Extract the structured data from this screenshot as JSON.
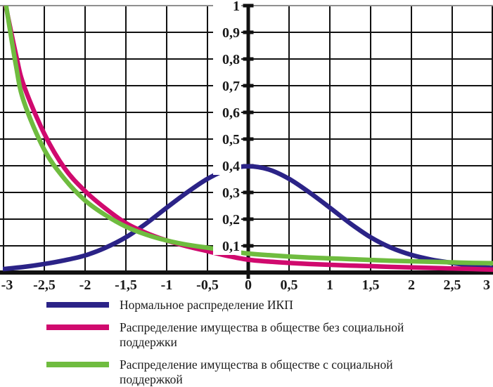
{
  "chart_data": {
    "type": "line",
    "title": "",
    "xlabel": "",
    "ylabel": "",
    "xlim": [
      -3,
      3
    ],
    "ylim": [
      0,
      1
    ],
    "grid": true,
    "legend_position": "bottom",
    "x_ticks": {
      "values": [
        -3,
        -2.5,
        -2,
        -1.5,
        -1,
        -0.5,
        0,
        0.5,
        1,
        1.5,
        2,
        2.5,
        3
      ],
      "labels": [
        "-3",
        "-2,5",
        "-2",
        "-1,5",
        "-1",
        "-0,5",
        "0",
        "0,5",
        "1",
        "1,5",
        "2",
        "2,5",
        "3"
      ]
    },
    "y_ticks": {
      "values": [
        0.1,
        0.2,
        0.3,
        0.4,
        0.5,
        0.6,
        0.7,
        0.8,
        0.9,
        1.0
      ],
      "labels": [
        "0,1",
        "0,2",
        "0,3",
        "0,4",
        "0,5",
        "0,6",
        "0,7",
        "0,8",
        "0,9",
        "1"
      ]
    },
    "series": [
      {
        "name": "Нормальное распределение ИКП",
        "color": "#2b2387",
        "points": [
          [
            -3,
            0.013
          ],
          [
            -2.75,
            0.021
          ],
          [
            -2.5,
            0.032
          ],
          [
            -2.25,
            0.046
          ],
          [
            -2,
            0.064
          ],
          [
            -1.75,
            0.093
          ],
          [
            -1.5,
            0.132
          ],
          [
            -1.25,
            0.184
          ],
          [
            -1,
            0.243
          ],
          [
            -0.75,
            0.3
          ],
          [
            -0.5,
            0.351
          ],
          [
            -0.25,
            0.386
          ],
          [
            0,
            0.398
          ],
          [
            0.25,
            0.386
          ],
          [
            0.5,
            0.351
          ],
          [
            0.75,
            0.3
          ],
          [
            1,
            0.243
          ],
          [
            1.25,
            0.184
          ],
          [
            1.5,
            0.132
          ],
          [
            1.75,
            0.093
          ],
          [
            2,
            0.066
          ],
          [
            2.25,
            0.048
          ],
          [
            2.5,
            0.036
          ],
          [
            2.75,
            0.025
          ],
          [
            3,
            0.016
          ]
        ]
      },
      {
        "name": "Распределение имущества в обществе без социальной поддержки",
        "color": "#d00a6e",
        "points": [
          [
            -3,
            1.04
          ],
          [
            -2.85,
            0.82
          ],
          [
            -2.75,
            0.7
          ],
          [
            -2.5,
            0.52
          ],
          [
            -2.25,
            0.39
          ],
          [
            -2,
            0.305
          ],
          [
            -1.75,
            0.24
          ],
          [
            -1.5,
            0.185
          ],
          [
            -1.25,
            0.148
          ],
          [
            -1,
            0.12
          ],
          [
            -0.75,
            0.098
          ],
          [
            -0.5,
            0.08
          ],
          [
            -0.25,
            0.062
          ],
          [
            0,
            0.048
          ],
          [
            0.25,
            0.041
          ],
          [
            0.5,
            0.036
          ],
          [
            0.75,
            0.032
          ],
          [
            1,
            0.029
          ],
          [
            1.25,
            0.026
          ],
          [
            1.5,
            0.024
          ],
          [
            1.75,
            0.021
          ],
          [
            2,
            0.019
          ],
          [
            2.25,
            0.017
          ],
          [
            2.5,
            0.015
          ],
          [
            2.75,
            0.013
          ],
          [
            3,
            0.011
          ]
        ]
      },
      {
        "name": "Распределение имущества в обществе с социальной поддержкой",
        "color": "#6fbc3f",
        "points": [
          [
            -3,
            1.06
          ],
          [
            -2.85,
            0.78
          ],
          [
            -2.75,
            0.64
          ],
          [
            -2.5,
            0.46
          ],
          [
            -2.25,
            0.35
          ],
          [
            -2,
            0.27
          ],
          [
            -1.75,
            0.215
          ],
          [
            -1.5,
            0.172
          ],
          [
            -1.25,
            0.142
          ],
          [
            -1,
            0.12
          ],
          [
            -0.75,
            0.104
          ],
          [
            -0.5,
            0.093
          ],
          [
            -0.25,
            0.081
          ],
          [
            0,
            0.071
          ],
          [
            0.25,
            0.065
          ],
          [
            0.5,
            0.06
          ],
          [
            0.75,
            0.056
          ],
          [
            1,
            0.053
          ],
          [
            1.25,
            0.05
          ],
          [
            1.5,
            0.047
          ],
          [
            1.75,
            0.044
          ],
          [
            2,
            0.042
          ],
          [
            2.25,
            0.04
          ],
          [
            2.5,
            0.038
          ],
          [
            2.75,
            0.036
          ],
          [
            3,
            0.035
          ]
        ]
      }
    ]
  },
  "legend": {
    "items": [
      {
        "label": "Нормальное распределение ИКП",
        "color": "#2b2387"
      },
      {
        "label": "Распределение имущества в обществе без социальной поддержки",
        "color": "#d00a6e"
      },
      {
        "label": "Распределение имущества в обществе с социальной поддержкой",
        "color": "#6fbc3f"
      }
    ]
  },
  "colors": {
    "background": "#ffffff",
    "grid": "#111111",
    "grid_top": "#8f8f8f",
    "axis": "#111111",
    "tick_label": "#1a1a1a"
  }
}
